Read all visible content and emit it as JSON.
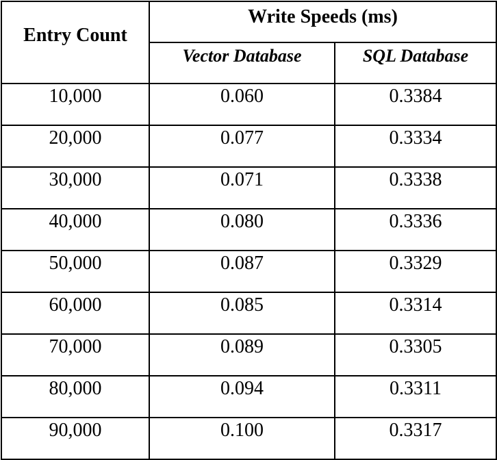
{
  "table": {
    "corner_header": "Entry Count",
    "group_header": "Write Speeds (ms)",
    "sub_headers": [
      "Vector Database",
      "SQL Database"
    ],
    "rows": [
      [
        "10,000",
        "0.060",
        "0.3384"
      ],
      [
        "20,000",
        "0.077",
        "0.3334"
      ],
      [
        "30,000",
        "0.071",
        "0.3338"
      ],
      [
        "40,000",
        "0.080",
        "0.3336"
      ],
      [
        "50,000",
        "0.087",
        "0.3329"
      ],
      [
        "60,000",
        "0.085",
        "0.3314"
      ],
      [
        "70,000",
        "0.089",
        "0.3305"
      ],
      [
        "80,000",
        "0.094",
        "0.3311"
      ],
      [
        "90,000",
        "0.100",
        "0.3317"
      ]
    ]
  }
}
